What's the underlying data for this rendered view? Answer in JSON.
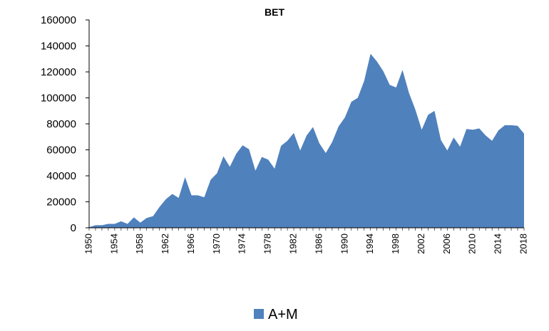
{
  "chart_data": {
    "type": "area",
    "title": "BET",
    "xlabel": "",
    "ylabel": "",
    "ylim": [
      0,
      160000
    ],
    "xlim": [
      1950,
      2018
    ],
    "y_ticks": [
      "0",
      "20000",
      "40000",
      "60000",
      "80000",
      "100000",
      "120000",
      "140000",
      "160000"
    ],
    "x_ticks": [
      "1950",
      "1954",
      "1958",
      "1962",
      "1966",
      "1970",
      "1974",
      "1978",
      "1982",
      "1986",
      "1990",
      "1994",
      "1998",
      "2002",
      "2006",
      "2010",
      "2014",
      "2018"
    ],
    "grid": false,
    "legend_position": "bottom",
    "series_color": "#4f81bd",
    "series": [
      {
        "name": "A+M",
        "x": [
          1950,
          1951,
          1952,
          1953,
          1954,
          1955,
          1956,
          1957,
          1958,
          1959,
          1960,
          1961,
          1962,
          1963,
          1964,
          1965,
          1966,
          1967,
          1968,
          1969,
          1970,
          1971,
          1972,
          1973,
          1974,
          1975,
          1976,
          1977,
          1978,
          1979,
          1980,
          1981,
          1982,
          1983,
          1984,
          1985,
          1986,
          1987,
          1988,
          1989,
          1990,
          1991,
          1992,
          1993,
          1994,
          1995,
          1996,
          1997,
          1998,
          1999,
          2000,
          2001,
          2002,
          2003,
          2004,
          2005,
          2006,
          2007,
          2008,
          2009,
          2010,
          2011,
          2012,
          2013,
          2014,
          2015,
          2016,
          2017,
          2018
        ],
        "values": [
          500,
          2000,
          2000,
          3000,
          3000,
          5000,
          3000,
          8000,
          4000,
          7500,
          9000,
          16000,
          22000,
          26000,
          23000,
          39000,
          25000,
          25000,
          23500,
          37000,
          42000,
          55000,
          47000,
          57000,
          63500,
          60500,
          44000,
          54500,
          52500,
          45500,
          63000,
          67000,
          73000,
          59500,
          71000,
          77500,
          65000,
          57500,
          66000,
          78000,
          85000,
          97000,
          100000,
          113000,
          134000,
          128000,
          120500,
          110000,
          108000,
          121500,
          104000,
          91000,
          75500,
          87000,
          90000,
          67500,
          59500,
          69500,
          62500,
          76000,
          75500,
          76500,
          71000,
          67000,
          75000,
          79000,
          79000,
          78500,
          72500
        ]
      }
    ]
  }
}
